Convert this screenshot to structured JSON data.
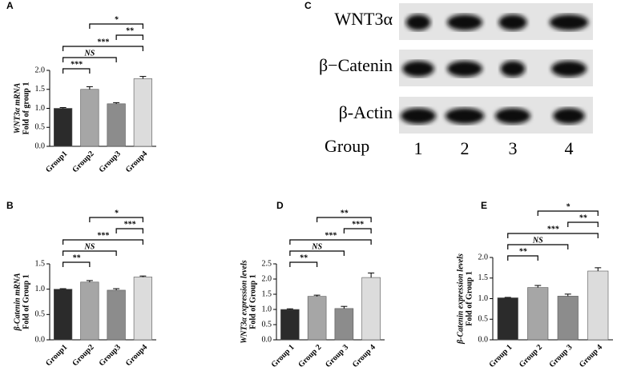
{
  "chart_data": [
    {
      "type": "bar",
      "panel": "A",
      "ylabel": [
        "WNT3α mRNA",
        "Fold of group 1"
      ],
      "categories": [
        "Group1",
        "Group2",
        "Group3",
        "Group4"
      ],
      "values": [
        1.0,
        1.5,
        1.12,
        1.78
      ],
      "errors": [
        0.02,
        0.07,
        0.03,
        0.06
      ],
      "colors": [
        "#2b2b2b",
        "#a6a6a6",
        "#8c8c8c",
        "#dcdcdc"
      ],
      "ylim": [
        0,
        2.0
      ],
      "yticks": [
        {
          "value": 0,
          "label": "0.0"
        },
        {
          "value": 0.5,
          "label": "0.5"
        },
        {
          "value": 1.0,
          "label": "1.0"
        },
        {
          "value": 1.5,
          "label": "1.5"
        },
        {
          "value": 2.0,
          "label": "2.0"
        }
      ],
      "significance": [
        {
          "from": 0,
          "to": 1,
          "label": "***"
        },
        {
          "from": 0,
          "to": 2,
          "label": "NS"
        },
        {
          "from": 0,
          "to": 3,
          "label": "***"
        },
        {
          "from": 2,
          "to": 3,
          "label": "**"
        },
        {
          "from": 1,
          "to": 3,
          "label": "*"
        }
      ]
    },
    {
      "type": "bar",
      "panel": "B",
      "ylabel": [
        "β-Catenin mRNA",
        "Fold of Group 1"
      ],
      "categories": [
        "Group1",
        "Group2",
        "Group3",
        "Group4"
      ],
      "values": [
        1.0,
        1.14,
        0.98,
        1.24
      ],
      "errors": [
        0.01,
        0.03,
        0.03,
        0.02
      ],
      "colors": [
        "#2b2b2b",
        "#a6a6a6",
        "#8c8c8c",
        "#dcdcdc"
      ],
      "ylim": [
        0,
        1.5
      ],
      "yticks": [
        {
          "value": 0,
          "label": "0.0"
        },
        {
          "value": 0.5,
          "label": "0.5"
        },
        {
          "value": 1.0,
          "label": "1.0"
        },
        {
          "value": 1.5,
          "label": "1.5"
        }
      ],
      "significance": [
        {
          "from": 0,
          "to": 1,
          "label": "**"
        },
        {
          "from": 0,
          "to": 2,
          "label": "NS"
        },
        {
          "from": 0,
          "to": 3,
          "label": "***"
        },
        {
          "from": 2,
          "to": 3,
          "label": "***"
        },
        {
          "from": 1,
          "to": 3,
          "label": "*"
        }
      ]
    },
    {
      "type": "bar",
      "panel": "D",
      "ylabel": [
        "WNT3α expression levels",
        "Fold of Group 1"
      ],
      "categories": [
        "Group 1",
        "Group 2",
        "Group 3",
        "Group 4"
      ],
      "values": [
        1.0,
        1.43,
        1.03,
        2.05
      ],
      "errors": [
        0.02,
        0.04,
        0.07,
        0.15
      ],
      "colors": [
        "#2b2b2b",
        "#a6a6a6",
        "#8c8c8c",
        "#dcdcdc"
      ],
      "ylim": [
        0,
        2.5
      ],
      "yticks": [
        {
          "value": 0,
          "label": "0.0"
        },
        {
          "value": 0.5,
          "label": "0.5"
        },
        {
          "value": 1.0,
          "label": "1.0"
        },
        {
          "value": 1.5,
          "label": "1.5"
        },
        {
          "value": 2.0,
          "label": "2.0"
        },
        {
          "value": 2.5,
          "label": "2.5"
        }
      ],
      "significance": [
        {
          "from": 0,
          "to": 1,
          "label": "**"
        },
        {
          "from": 0,
          "to": 2,
          "label": "NS"
        },
        {
          "from": 0,
          "to": 3,
          "label": "***"
        },
        {
          "from": 2,
          "to": 3,
          "label": "***"
        },
        {
          "from": 1,
          "to": 3,
          "label": "**"
        }
      ]
    },
    {
      "type": "bar",
      "panel": "E",
      "ylabel": [
        "β-Catenin expression levels",
        "Fold of Group 1"
      ],
      "categories": [
        "Group 1",
        "Group 2",
        "Group 3",
        "Group 4"
      ],
      "values": [
        1.02,
        1.27,
        1.06,
        1.67
      ],
      "errors": [
        0.01,
        0.05,
        0.05,
        0.08
      ],
      "colors": [
        "#2b2b2b",
        "#a6a6a6",
        "#8c8c8c",
        "#dcdcdc"
      ],
      "ylim": [
        0,
        2.0
      ],
      "yticks": [
        {
          "value": 0,
          "label": "0.0"
        },
        {
          "value": 0.5,
          "label": "0.5"
        },
        {
          "value": 1.0,
          "label": "1.0"
        },
        {
          "value": 1.5,
          "label": "1.5"
        },
        {
          "value": 2.0,
          "label": "2.0"
        }
      ],
      "significance": [
        {
          "from": 0,
          "to": 1,
          "label": "**"
        },
        {
          "from": 0,
          "to": 2,
          "label": "NS"
        },
        {
          "from": 0,
          "to": 3,
          "label": "***"
        },
        {
          "from": 2,
          "to": 3,
          "label": "**"
        },
        {
          "from": 1,
          "to": 3,
          "label": "*"
        }
      ]
    }
  ],
  "blot": {
    "panel": "C",
    "rows": [
      "WNT3α",
      "β−Catenin",
      "β-Actin"
    ],
    "lane_title": "Group",
    "lanes": [
      "1",
      "2",
      "3",
      "4"
    ]
  }
}
